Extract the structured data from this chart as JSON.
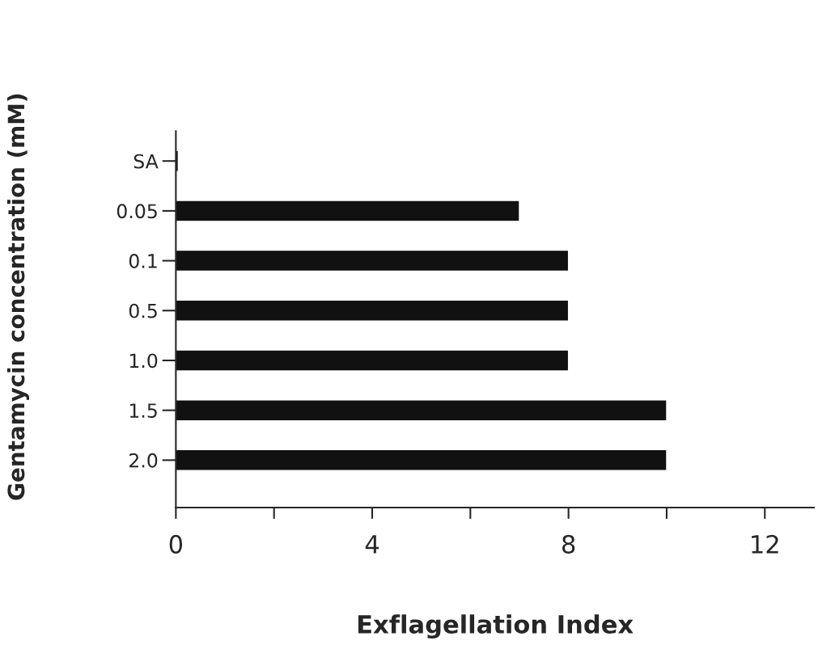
{
  "chart_data": {
    "type": "bar",
    "orientation": "horizontal",
    "xlabel": "Exflagellation Index",
    "ylabel": "Gentamycin concentration (mM)",
    "categories": [
      "SA",
      "0.05",
      "0.1",
      "0.5",
      "1.0",
      "1.5",
      "2.0"
    ],
    "values": [
      0.05,
      7,
      8,
      8,
      8,
      10,
      10
    ],
    "color": "#111111",
    "xlim": [
      0,
      13
    ],
    "xticks": [
      0,
      {
        "value": 2,
        "label": null
      },
      4,
      {
        "value": 6,
        "label": null
      },
      8,
      {
        "value": 10,
        "label": null
      },
      12
    ],
    "grid": false,
    "legend": false
  }
}
